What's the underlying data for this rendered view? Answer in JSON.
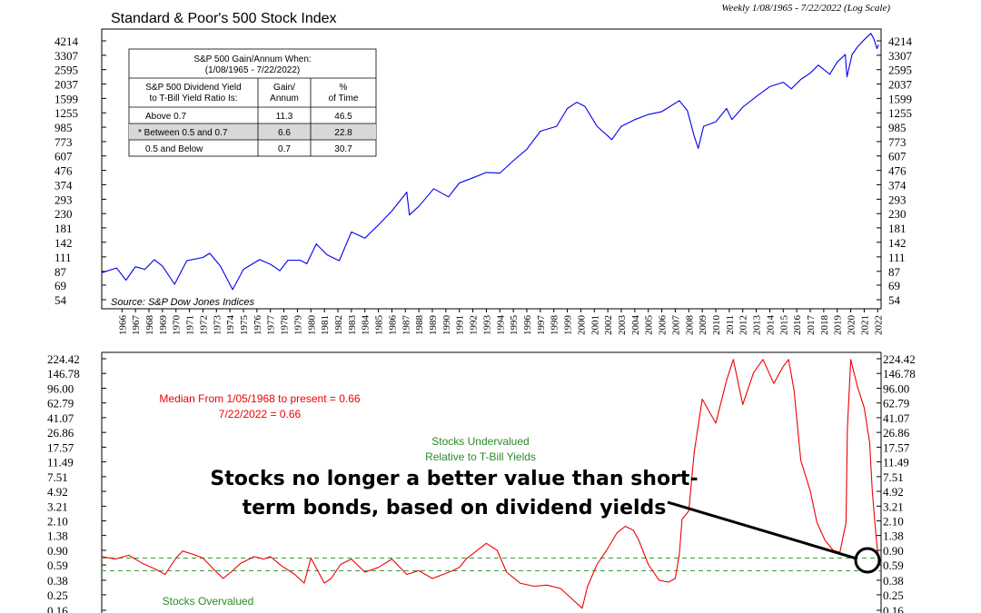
{
  "chart_data": [
    {
      "type": "line",
      "title": "Standard & Poor's 500 Stock Index",
      "subtitle": "Weekly 1/08/1965 - 7/22/2022 (Log Scale)",
      "scale": "log",
      "yticks": [
        "4214",
        "3307",
        "2595",
        "2037",
        "1599",
        "1255",
        "985",
        "773",
        "607",
        "476",
        "374",
        "293",
        "230",
        "181",
        "142",
        "111",
        "87",
        "69",
        "54"
      ],
      "ylim": [
        54,
        4214
      ],
      "x_years": [
        "1966",
        "1967",
        "1968",
        "1969",
        "1970",
        "1971",
        "1972",
        "1973",
        "1974",
        "1975",
        "1976",
        "1977",
        "1978",
        "1979",
        "1980",
        "1981",
        "1982",
        "1983",
        "1984",
        "1985",
        "1986",
        "1987",
        "1988",
        "1989",
        "1990",
        "1991",
        "1992",
        "1993",
        "1994",
        "1995",
        "1996",
        "1997",
        "1998",
        "1999",
        "2000",
        "2001",
        "2002",
        "2003",
        "2004",
        "2005",
        "2006",
        "2007",
        "2008",
        "2009",
        "2010",
        "2011",
        "2012",
        "2013",
        "2014",
        "2015",
        "2016",
        "2017",
        "2018",
        "2019",
        "2020",
        "2021",
        "2022"
      ],
      "source": "Source: S&P Dow Jones Indices",
      "series": [
        {
          "color": "#0000ee",
          "points": [
            [
              1965.0,
              85
            ],
            [
              1966.1,
              92
            ],
            [
              1966.8,
              75
            ],
            [
              1967.5,
              94
            ],
            [
              1968.2,
              90
            ],
            [
              1968.9,
              106
            ],
            [
              1969.5,
              95
            ],
            [
              1970.4,
              70
            ],
            [
              1971.3,
              104
            ],
            [
              1972.5,
              110
            ],
            [
              1973.0,
              118
            ],
            [
              1973.8,
              95
            ],
            [
              1974.7,
              64
            ],
            [
              1975.5,
              90
            ],
            [
              1976.7,
              106
            ],
            [
              1977.5,
              98
            ],
            [
              1978.2,
              88
            ],
            [
              1978.8,
              105
            ],
            [
              1979.7,
              105
            ],
            [
              1980.2,
              99
            ],
            [
              1980.9,
              138
            ],
            [
              1981.7,
              115
            ],
            [
              1982.6,
              104
            ],
            [
              1983.5,
              169
            ],
            [
              1984.5,
              152
            ],
            [
              1985.5,
              190
            ],
            [
              1986.5,
              240
            ],
            [
              1987.6,
              330
            ],
            [
              1987.8,
              225
            ],
            [
              1988.5,
              260
            ],
            [
              1989.6,
              350
            ],
            [
              1990.7,
              305
            ],
            [
              1991.5,
              385
            ],
            [
              1992.5,
              420
            ],
            [
              1993.5,
              460
            ],
            [
              1994.5,
              455
            ],
            [
              1995.5,
              560
            ],
            [
              1996.5,
              680
            ],
            [
              1997.5,
              920
            ],
            [
              1998.7,
              1000
            ],
            [
              1999.5,
              1350
            ],
            [
              2000.2,
              1500
            ],
            [
              2000.8,
              1400
            ],
            [
              2001.7,
              1000
            ],
            [
              2002.8,
              800
            ],
            [
              2003.5,
              1000
            ],
            [
              2004.5,
              1120
            ],
            [
              2005.5,
              1220
            ],
            [
              2006.5,
              1280
            ],
            [
              2007.8,
              1540
            ],
            [
              2008.4,
              1300
            ],
            [
              2008.9,
              850
            ],
            [
              2009.2,
              690
            ],
            [
              2009.6,
              1000
            ],
            [
              2010.5,
              1080
            ],
            [
              2011.3,
              1350
            ],
            [
              2011.7,
              1120
            ],
            [
              2012.5,
              1380
            ],
            [
              2013.5,
              1650
            ],
            [
              2014.5,
              1950
            ],
            [
              2015.5,
              2100
            ],
            [
              2016.1,
              1880
            ],
            [
              2016.8,
              2200
            ],
            [
              2017.5,
              2450
            ],
            [
              2018.1,
              2800
            ],
            [
              2018.95,
              2400
            ],
            [
              2019.5,
              2950
            ],
            [
              2020.1,
              3350
            ],
            [
              2020.22,
              2300
            ],
            [
              2020.6,
              3350
            ],
            [
              2021.0,
              3800
            ],
            [
              2021.5,
              4300
            ],
            [
              2021.99,
              4780
            ],
            [
              2022.2,
              4400
            ],
            [
              2022.45,
              3700
            ],
            [
              2022.56,
              3950
            ]
          ]
        }
      ],
      "table": {
        "heading": "S&P 500 Gain/Annum When:",
        "subheading": "(1/08/1965 - 7/22/2022)",
        "col1_header": [
          "S&P 500 Dividend Yield",
          "to T-Bill Yield Ratio Is:"
        ],
        "col2_header": [
          "Gain/",
          "Annum"
        ],
        "col3_header": [
          "%",
          "of Time"
        ],
        "rows": [
          {
            "label": "Above 0.7",
            "gain": "11.3",
            "time": "46.5",
            "highlight": false
          },
          {
            "label": "* Between 0.5 and 0.7",
            "gain": "6.6",
            "time": "22.8",
            "highlight": true
          },
          {
            "label": "0.5 and Below",
            "gain": "0.7",
            "time": "30.7",
            "highlight": false
          }
        ]
      }
    },
    {
      "type": "line",
      "scale": "log",
      "yticks": [
        "224.42",
        "146.78",
        "96.00",
        "62.79",
        "41.07",
        "26.86",
        "17.57",
        "11.49",
        "7.51",
        "4.92",
        "3.21",
        "2.10",
        "1.38",
        "0.90",
        "0.59",
        "0.38",
        "0.25",
        "0.16"
      ],
      "ylim": [
        0.16,
        224.42
      ],
      "annotations": {
        "median_line1": "Median From 1/05/1968 to present = 0.66",
        "median_line2": "7/22/2022 = 0.66",
        "undervalued_line1": "Stocks Undervalued",
        "undervalued_line2": "Relative to T-Bill Yields",
        "overvalued": "Stocks Overvalued",
        "callout_line1": "Stocks no longer a better value than short-",
        "callout_line2": "term bonds, based on dividend yields"
      },
      "reference_lines": [
        0.72,
        0.5
      ],
      "series": [
        {
          "color": "#ee0000",
          "points": [
            [
              1965.0,
              0.75
            ],
            [
              1966.0,
              0.7
            ],
            [
              1967.0,
              0.78
            ],
            [
              1968.0,
              0.62
            ],
            [
              1969.0,
              0.52
            ],
            [
              1969.7,
              0.45
            ],
            [
              1970.5,
              0.72
            ],
            [
              1971.0,
              0.88
            ],
            [
              1971.8,
              0.8
            ],
            [
              1972.5,
              0.72
            ],
            [
              1973.4,
              0.5
            ],
            [
              1974.0,
              0.4
            ],
            [
              1974.7,
              0.5
            ],
            [
              1975.3,
              0.62
            ],
            [
              1976.3,
              0.75
            ],
            [
              1977.0,
              0.7
            ],
            [
              1977.5,
              0.75
            ],
            [
              1978.3,
              0.58
            ],
            [
              1979.3,
              0.45
            ],
            [
              1980.0,
              0.35
            ],
            [
              1980.5,
              0.72
            ],
            [
              1981.0,
              0.5
            ],
            [
              1981.5,
              0.35
            ],
            [
              1982.0,
              0.4
            ],
            [
              1982.7,
              0.6
            ],
            [
              1983.5,
              0.7
            ],
            [
              1984.5,
              0.48
            ],
            [
              1985.5,
              0.55
            ],
            [
              1986.5,
              0.7
            ],
            [
              1987.6,
              0.45
            ],
            [
              1988.5,
              0.5
            ],
            [
              1989.5,
              0.4
            ],
            [
              1990.3,
              0.45
            ],
            [
              1991.0,
              0.5
            ],
            [
              1991.5,
              0.55
            ],
            [
              1992.0,
              0.7
            ],
            [
              1993.0,
              0.95
            ],
            [
              1993.5,
              1.1
            ],
            [
              1994.3,
              0.9
            ],
            [
              1995.0,
              0.48
            ],
            [
              1996.0,
              0.35
            ],
            [
              1997.0,
              0.32
            ],
            [
              1998.0,
              0.33
            ],
            [
              1999.0,
              0.3
            ],
            [
              2000.0,
              0.21
            ],
            [
              2000.6,
              0.17
            ],
            [
              2001.0,
              0.32
            ],
            [
              2001.7,
              0.6
            ],
            [
              2002.5,
              0.95
            ],
            [
              2003.2,
              1.5
            ],
            [
              2003.8,
              1.8
            ],
            [
              2004.4,
              1.6
            ],
            [
              2004.8,
              1.2
            ],
            [
              2005.5,
              0.6
            ],
            [
              2006.3,
              0.38
            ],
            [
              2007.0,
              0.36
            ],
            [
              2007.5,
              0.4
            ],
            [
              2007.8,
              0.8
            ],
            [
              2008.0,
              2.2
            ],
            [
              2008.5,
              2.8
            ],
            [
              2008.9,
              15
            ],
            [
              2009.5,
              70
            ],
            [
              2010.5,
              35
            ],
            [
              2011.3,
              120
            ],
            [
              2011.8,
              220
            ],
            [
              2012.5,
              60
            ],
            [
              2013.3,
              150
            ],
            [
              2014.0,
              220
            ],
            [
              2014.8,
              110
            ],
            [
              2015.5,
              180
            ],
            [
              2015.9,
              220
            ],
            [
              2016.3,
              90
            ],
            [
              2016.8,
              12
            ],
            [
              2017.5,
              5
            ],
            [
              2018.0,
              2
            ],
            [
              2018.6,
              1.2
            ],
            [
              2019.2,
              0.9
            ],
            [
              2019.7,
              0.85
            ],
            [
              2020.15,
              2.0
            ],
            [
              2020.25,
              30
            ],
            [
              2020.5,
              220
            ],
            [
              2021.0,
              100
            ],
            [
              2021.5,
              55
            ],
            [
              2021.9,
              20
            ],
            [
              2022.1,
              5
            ],
            [
              2022.35,
              1.5
            ],
            [
              2022.56,
              0.66
            ]
          ]
        }
      ]
    }
  ]
}
